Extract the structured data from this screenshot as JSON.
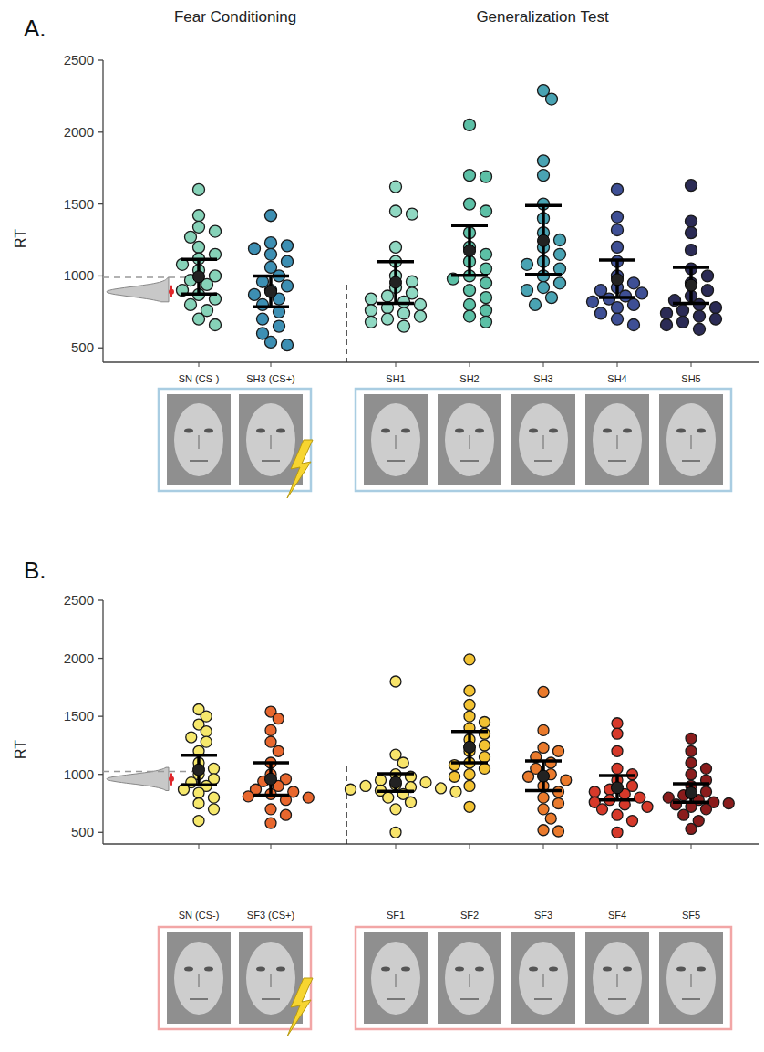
{
  "chart_data": [
    {
      "type": "strip",
      "panel_label": "A.",
      "section_titles": [
        "Fear Conditioning",
        "Generalization Test"
      ],
      "y_label": "RT",
      "categories": [
        "SN (CS-)",
        "SH3 (CS+)",
        "SH1",
        "SH2",
        "SH3",
        "SH4",
        "SH5"
      ],
      "colors": [
        "#86d2b8",
        "#3d8fb3",
        "#8fd8c2",
        "#5cc0a6",
        "#49a3b3",
        "#3e4f95",
        "#2b2b55"
      ],
      "points": [
        [
          1600,
          1420,
          1340,
          1310,
          1270,
          1200,
          1150,
          1120,
          1080,
          1040,
          1000,
          970,
          940,
          900,
          870,
          840,
          800,
          760,
          700,
          660
        ],
        [
          1420,
          1230,
          1210,
          1190,
          1150,
          1100,
          1060,
          1000,
          960,
          930,
          900,
          870,
          840,
          800,
          750,
          700,
          650,
          600,
          540,
          520
        ],
        [
          1620,
          1450,
          1430,
          1200,
          1100,
          1000,
          960,
          920,
          880,
          860,
          840,
          820,
          800,
          780,
          760,
          740,
          720,
          700,
          680,
          650
        ],
        [
          2050,
          1700,
          1690,
          1500,
          1450,
          1300,
          1200,
          1150,
          1100,
          1050,
          1000,
          980,
          950,
          900,
          850,
          800,
          760,
          720,
          680
        ],
        [
          2290,
          2230,
          1800,
          1700,
          1500,
          1400,
          1300,
          1250,
          1200,
          1150,
          1100,
          1080,
          1050,
          1000,
          950,
          920,
          900,
          850,
          800
        ],
        [
          1600,
          1410,
          1320,
          1200,
          1100,
          1000,
          950,
          920,
          900,
          880,
          860,
          840,
          820,
          800,
          780,
          740,
          700,
          660
        ],
        [
          1630,
          1380,
          1300,
          1180,
          1050,
          1000,
          950,
          900,
          860,
          830,
          800,
          780,
          760,
          740,
          720,
          700,
          680,
          660,
          630
        ]
      ],
      "means": [
        995,
        890,
        955,
        1175,
        1245,
        975,
        935
      ],
      "ci_low": [
        875,
        785,
        810,
        1005,
        1010,
        850,
        810
      ],
      "ci_high": [
        1115,
        1000,
        1100,
        1350,
        1490,
        1110,
        1060
      ],
      "null_distribution": {
        "min": 820,
        "max": 990,
        "mean": 890,
        "ci_low": 850,
        "ci_high": 935
      },
      "reference_line": 990,
      "ylim": [
        400,
        2500
      ],
      "yticks": [
        500,
        1000,
        1500,
        2000,
        2500
      ]
    },
    {
      "type": "strip",
      "panel_label": "B.",
      "y_label": "RT",
      "categories": [
        "SN (CS-)",
        "SF3 (CS+)",
        "SF1",
        "SF2",
        "SF3",
        "SF4",
        "SF5"
      ],
      "colors": [
        "#f6e86c",
        "#e8672e",
        "#f8e46a",
        "#f2c232",
        "#ea7a2c",
        "#d6392a",
        "#8a1c1c"
      ],
      "points": [
        [
          1560,
          1500,
          1430,
          1370,
          1320,
          1280,
          1200,
          1100,
          1050,
          1000,
          960,
          930,
          900,
          870,
          840,
          800,
          750,
          700,
          600
        ],
        [
          1540,
          1480,
          1380,
          1280,
          1200,
          1100,
          1000,
          960,
          940,
          900,
          870,
          850,
          830,
          810,
          800,
          780,
          700,
          650,
          580
        ],
        [
          1800,
          1170,
          1100,
          1000,
          980,
          950,
          930,
          910,
          900,
          890,
          880,
          870,
          860,
          850,
          830,
          800,
          760,
          700,
          500
        ],
        [
          1990,
          1720,
          1600,
          1500,
          1450,
          1400,
          1350,
          1300,
          1250,
          1200,
          1150,
          1100,
          1080,
          1050,
          1000,
          980,
          900,
          720
        ],
        [
          1710,
          1380,
          1230,
          1200,
          1150,
          1100,
          1050,
          1000,
          980,
          950,
          900,
          850,
          800,
          750,
          700,
          620,
          520,
          510
        ],
        [
          1440,
          1350,
          1200,
          1050,
          1000,
          950,
          900,
          870,
          850,
          830,
          800,
          780,
          760,
          740,
          720,
          700,
          650,
          600,
          500
        ],
        [
          1310,
          1200,
          1100,
          1050,
          1000,
          950,
          900,
          850,
          820,
          800,
          780,
          760,
          750,
          740,
          720,
          700,
          650,
          600,
          530
        ]
      ],
      "means": [
        1040,
        960,
        930,
        1235,
        985,
        885,
        840
      ],
      "ci_low": [
        910,
        820,
        855,
        1100,
        860,
        780,
        760
      ],
      "ci_high": [
        1165,
        1100,
        1005,
        1370,
        1115,
        990,
        920
      ],
      "null_distribution": {
        "min": 860,
        "max": 1060,
        "mean": 960,
        "ci_low": 905,
        "ci_high": 1010
      },
      "reference_line": 1025,
      "ylim": [
        400,
        2500
      ],
      "yticks": [
        500,
        1000,
        1500,
        2000,
        2500
      ]
    }
  ]
}
